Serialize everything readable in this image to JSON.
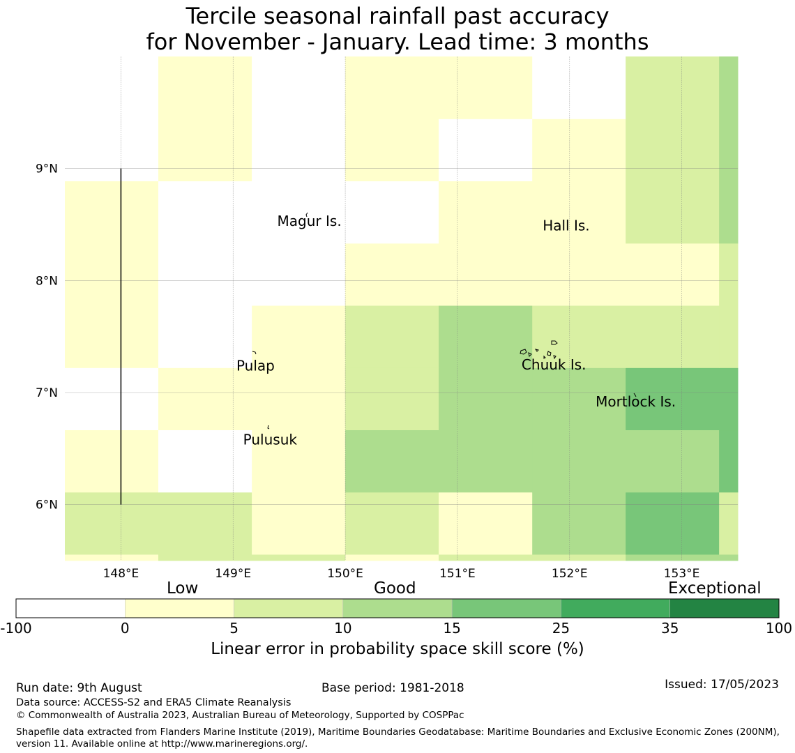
{
  "title": {
    "line1": "Tercile seasonal rainfall past accuracy",
    "line2": "for November - January. Lead time: 3 months"
  },
  "map": {
    "lon_range": [
      147.5,
      153.5
    ],
    "lat_range": [
      5.5,
      10.0
    ],
    "lon_ticks": [
      {
        "value": 148,
        "label": "148°E"
      },
      {
        "value": 149,
        "label": "149°E"
      },
      {
        "value": 150,
        "label": "150°E"
      },
      {
        "value": 151,
        "label": "151°E"
      },
      {
        "value": 152,
        "label": "152°E"
      },
      {
        "value": 153,
        "label": "153°E"
      }
    ],
    "lat_ticks": [
      {
        "value": 6,
        "label": "6°N"
      },
      {
        "value": 7,
        "label": "7°N"
      },
      {
        "value": 8,
        "label": "8°N"
      },
      {
        "value": 9,
        "label": "9°N"
      }
    ],
    "grid_lons": [
      147.5,
      148.333,
      149.167,
      150.0,
      150.833,
      151.667,
      152.5,
      153.333,
      153.5
    ],
    "grid_lats": [
      5.5,
      5.556,
      6.111,
      6.667,
      7.222,
      7.778,
      8.333,
      8.889,
      9.444,
      10.0
    ],
    "skill_classes": [
      [
        "c1",
        "c2",
        "c2",
        "c1",
        "c2",
        "c2",
        "c3",
        "c3"
      ],
      [
        "c2",
        "c2",
        "c1",
        "c2",
        "c1",
        "c3",
        "c4",
        "c2"
      ],
      [
        "c1",
        "c0",
        "c1",
        "c3",
        "c3",
        "c3",
        "c3",
        "c4"
      ],
      [
        "c0",
        "c1",
        "c1",
        "c2",
        "c3",
        "c3",
        "c4",
        "c4"
      ],
      [
        "c1",
        "c0",
        "c1",
        "c2",
        "c3",
        "c2",
        "c2",
        "c2"
      ],
      [
        "c1",
        "c0",
        "c0",
        "c1",
        "c1",
        "c1",
        "c1",
        "c2"
      ],
      [
        "c1",
        "c0",
        "c0",
        "c0",
        "c1",
        "c1",
        "c2",
        "c3"
      ],
      [
        "c0",
        "c1",
        "c0",
        "c1",
        "c0",
        "c1",
        "c2",
        "c3"
      ],
      [
        "c0",
        "c1",
        "c0",
        "c1",
        "c1",
        "c0",
        "c2",
        "c3"
      ]
    ],
    "class_colors": {
      "c0": "#ffffff",
      "c1": "#ffffcc",
      "c2": "#d9f0a3",
      "c3": "#addd8e",
      "c4": "#78c679"
    },
    "boundary_line": {
      "lon": 148.0,
      "lat_from": 6.0,
      "lat_to": 9.0
    },
    "places": [
      {
        "name": "Magur Is.",
        "lon": 149.68,
        "lat": 8.53
      },
      {
        "name": "Hall Is.",
        "lon": 151.97,
        "lat": 8.49
      },
      {
        "name": "Pulap",
        "lon": 149.2,
        "lat": 7.24
      },
      {
        "name": "Chuuk Is.",
        "lon": 151.86,
        "lat": 7.25
      },
      {
        "name": "Mortlock Is.",
        "lon": 152.59,
        "lat": 6.92
      },
      {
        "name": "Pulusuk",
        "lon": 149.33,
        "lat": 6.58
      }
    ]
  },
  "colorbar": {
    "categories": [
      {
        "label": "Low",
        "at": "-100..5"
      },
      {
        "label": "Good",
        "at": "5..25"
      },
      {
        "label": "Exceptional",
        "at": "35..100"
      }
    ],
    "ticks": [
      "-100",
      "0",
      "5",
      "10",
      "15",
      "25",
      "35",
      "100"
    ],
    "colors": [
      "#ffffff",
      "#ffffcc",
      "#d9f0a3",
      "#addd8e",
      "#78c679",
      "#41ab5d",
      "#238443"
    ],
    "label": "Linear error in probability space skill score (%)"
  },
  "footer": {
    "run_date": "Run date: 9th August",
    "base_period": "Base period: 1981-2018",
    "issued": "Issued: 17/05/2023",
    "data_source": "Data source: ACCESS-S2 and ERA5 Climate Reanalysis",
    "copyright": "© Commonwealth of Australia 2023, Australian Bureau of Meteorology, Supported by COSPPac",
    "shapefile": "Shapefile data extracted from Flanders Marine Institute (2019), Maritime Boundaries Geodatabase: Maritime Boundaries and Exclusive Economic Zones (200NM), version 11. Available online at http://www.marineregions.org/."
  }
}
